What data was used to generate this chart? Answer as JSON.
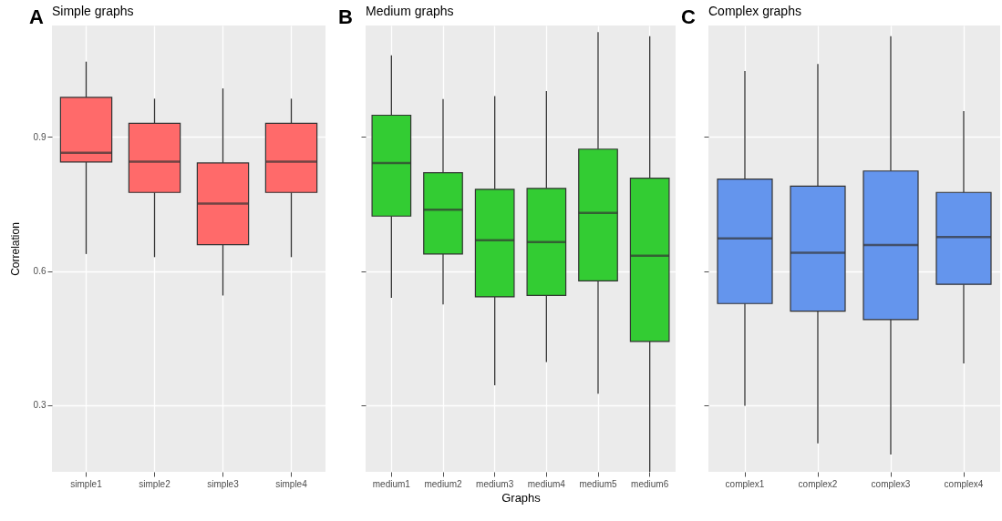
{
  "chart_data": [
    {
      "type": "box",
      "title": "Simple graphs",
      "annotations": [
        "A"
      ],
      "ylabel": "Correlation",
      "categories": [
        "simple1",
        "simple2",
        "simple3",
        "simple4"
      ],
      "ylim": [
        0.15,
        1.15
      ],
      "yticks": [
        0.3,
        0.6,
        0.9
      ],
      "grid": true,
      "series": [
        {
          "color": "#ff6a6a",
          "boxes": [
            {
              "low": 0.638,
              "q1": 0.844,
              "median": 0.865,
              "q3": 0.989,
              "high": 1.069
            },
            {
              "low": 0.631,
              "q1": 0.776,
              "median": 0.845,
              "q3": 0.931,
              "high": 0.986
            },
            {
              "low": 0.545,
              "q1": 0.659,
              "median": 0.751,
              "q3": 0.842,
              "high": 1.009
            },
            {
              "low": 0.631,
              "q1": 0.776,
              "median": 0.845,
              "q3": 0.931,
              "high": 0.986
            }
          ]
        }
      ]
    },
    {
      "type": "box",
      "title": "Medium graphs",
      "annotations": [
        "B"
      ],
      "xlabel": "Graphs",
      "categories": [
        "medium1",
        "medium2",
        "medium3",
        "medium4",
        "medium5",
        "medium6"
      ],
      "ylim": [
        0.15,
        1.15
      ],
      "yticks": [
        0.3,
        0.6,
        0.9
      ],
      "grid": true,
      "tick_labels": "x",
      "series": [
        {
          "color": "#33cc33",
          "boxes": [
            {
              "low": 0.54,
              "q1": 0.723,
              "median": 0.842,
              "q3": 0.949,
              "high": 1.083
            },
            {
              "low": 0.525,
              "q1": 0.638,
              "median": 0.737,
              "q3": 0.82,
              "high": 0.985
            },
            {
              "low": 0.344,
              "q1": 0.542,
              "median": 0.669,
              "q3": 0.783,
              "high": 0.992
            },
            {
              "low": 0.396,
              "q1": 0.545,
              "median": 0.665,
              "q3": 0.785,
              "high": 1.003
            },
            {
              "low": 0.325,
              "q1": 0.578,
              "median": 0.73,
              "q3": 0.873,
              "high": 1.135
            },
            {
              "low": 0.15,
              "q1": 0.442,
              "median": 0.634,
              "q3": 0.808,
              "high": 1.126
            }
          ]
        }
      ]
    },
    {
      "type": "box",
      "title": "Complex graphs",
      "annotations": [
        "C"
      ],
      "categories": [
        "complex1",
        "complex2",
        "complex3",
        "complex4"
      ],
      "ylim": [
        0.15,
        1.15
      ],
      "yticks": [
        0.3,
        0.6,
        0.9
      ],
      "grid": true,
      "tick_labels": "x",
      "series": [
        {
          "color": "#6495ed",
          "boxes": [
            {
              "low": 0.298,
              "q1": 0.527,
              "median": 0.673,
              "q3": 0.806,
              "high": 1.048
            },
            {
              "low": 0.214,
              "q1": 0.51,
              "median": 0.641,
              "q3": 0.79,
              "high": 1.064
            },
            {
              "low": 0.189,
              "q1": 0.491,
              "median": 0.658,
              "q3": 0.824,
              "high": 1.126
            },
            {
              "low": 0.393,
              "q1": 0.57,
              "median": 0.676,
              "q3": 0.776,
              "high": 0.958
            }
          ]
        }
      ]
    }
  ]
}
